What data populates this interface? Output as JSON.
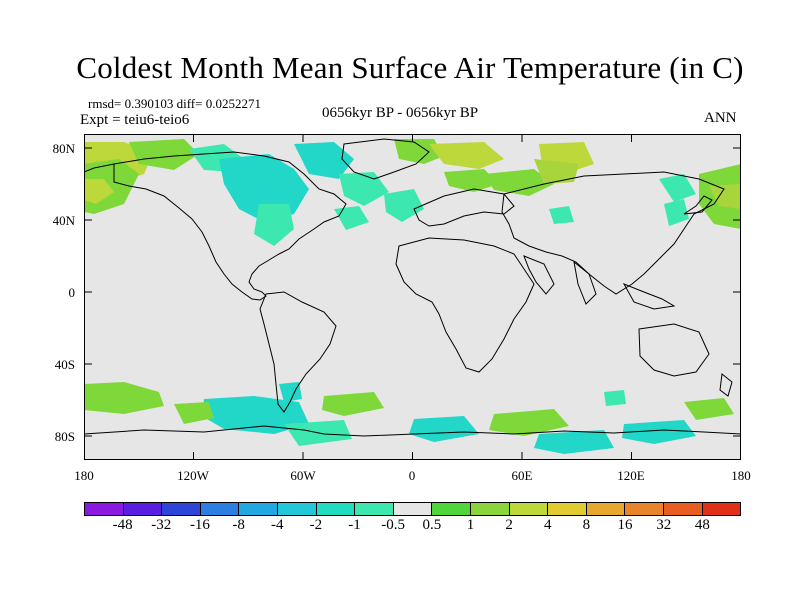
{
  "title": "Coldest Month Mean Surface Air Temperature (in C)",
  "stats": "rmsd= 0.390103 diff= 0.0252271",
  "expt": "Expt = teiu6-teio6",
  "period": "0656kyr BP - 0656kyr BP",
  "season": "ANN",
  "y_ticks": [
    "80N",
    "40N",
    "0",
    "40S",
    "80S"
  ],
  "x_ticks": [
    "180",
    "120W",
    "60W",
    "0",
    "60E",
    "120E",
    "180"
  ],
  "colorbar": {
    "labels": [
      "-48",
      "-32",
      "-16",
      "-8",
      "-4",
      "-2",
      "-1",
      "-0.5",
      "0.5",
      "1",
      "2",
      "4",
      "8",
      "16",
      "32",
      "48"
    ],
    "colors": [
      "#8a1ae0",
      "#5a1ee0",
      "#2d46d8",
      "#2a7fe0",
      "#22a8e0",
      "#22c8d8",
      "#22dcc0",
      "#3ce8b0",
      "#e6e6e6",
      "#4ed63a",
      "#8cd43c",
      "#bcd83a",
      "#e0cc30",
      "#e8a830",
      "#e8842a",
      "#e85e22",
      "#e03018"
    ]
  },
  "map": {
    "background": "#e6e6e6",
    "anomaly_colors": {
      "cyan": "#22d6c8",
      "cyan_light": "#3ce8b0",
      "green": "#7ed83a",
      "lime": "#bcd83a",
      "yellowgreen": "#a8d43c"
    }
  }
}
